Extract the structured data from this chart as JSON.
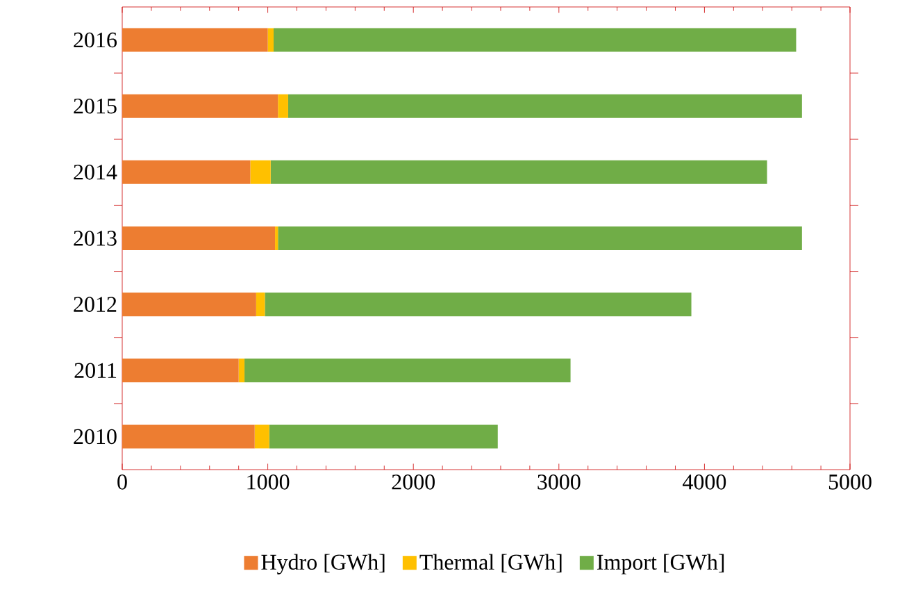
{
  "chart_data": {
    "type": "bar",
    "orientation": "horizontal",
    "stacked": true,
    "categories": [
      "2016",
      "2015",
      "2014",
      "2013",
      "2012",
      "2011",
      "2010"
    ],
    "series": [
      {
        "name": "Hydro [GWh]",
        "color": "#ed7d31",
        "values": [
          1000,
          1070,
          880,
          1050,
          920,
          800,
          910
        ]
      },
      {
        "name": "Thermal [GWh]",
        "color": "#ffc000",
        "values": [
          40,
          70,
          140,
          20,
          60,
          40,
          100
        ]
      },
      {
        "name": "Import [GWh]",
        "color": "#70ad47",
        "values": [
          3590,
          3530,
          3410,
          3600,
          2930,
          2240,
          1570
        ]
      }
    ],
    "xlim": [
      0,
      5000
    ],
    "xticks": [
      0,
      1000,
      2000,
      3000,
      4000,
      5000
    ],
    "legend": "bottom"
  }
}
